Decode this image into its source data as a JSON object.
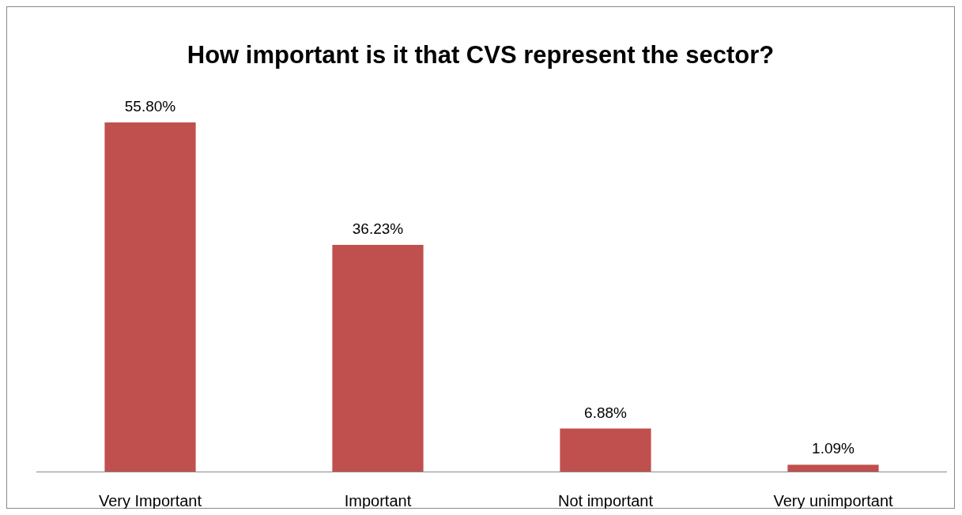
{
  "chart_data": {
    "type": "bar",
    "title": "How important is it that CVS represent the sector?",
    "categories": [
      "Very Important",
      "Important",
      "Not important",
      "Very unimportant"
    ],
    "values": [
      55.8,
      36.23,
      6.88,
      1.09
    ],
    "value_labels": [
      "55.80%",
      "36.23%",
      "6.88%",
      "1.09%"
    ],
    "color": "#c0504d"
  }
}
